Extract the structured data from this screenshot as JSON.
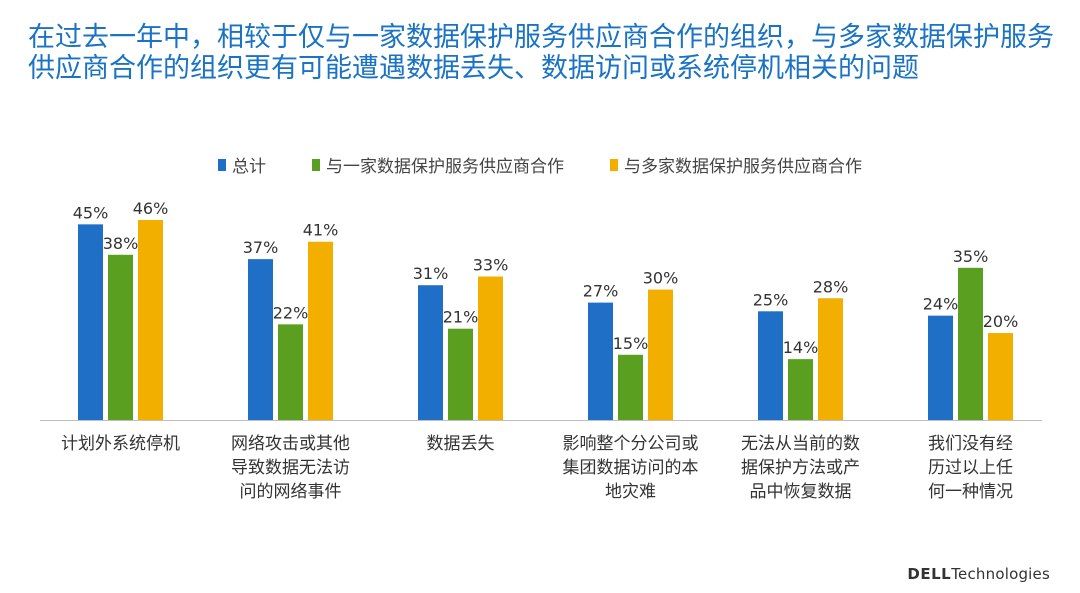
{
  "title": "在过去一年中，相较于仅与一家数据保护服务供应商合作的组织，与多家数据保护服务供应商合作的组织更有可能遭遇数据丢失、数据访问或系统停机相关的问题",
  "brand": {
    "bold": "DELL",
    "rest": "Technologies"
  },
  "colors": {
    "total": "#1f6fc6",
    "single": "#5a9f1f",
    "multi": "#f2af00"
  },
  "chart_data": {
    "type": "bar",
    "title": "",
    "xlabel": "",
    "ylabel": "",
    "ylim": [
      0,
      50
    ],
    "grid": false,
    "legend_position": "top-center",
    "categories": [
      "计划外系统停机",
      "网络攻击或其他\n导致数据无法访\n问的网络事件",
      "数据丢失",
      "影响整个分公司或\n集团数据访问的本\n地灾难",
      "无法从当前的数\n据保护方法或产\n品中恢复数据",
      "我们没有经\n历过以上任\n何一种情况"
    ],
    "series": [
      {
        "name": "总计",
        "color_key": "total",
        "values": [
          45,
          37,
          31,
          27,
          25,
          24
        ]
      },
      {
        "name": "与一家数据保护服务供应商合作",
        "color_key": "single",
        "values": [
          38,
          22,
          21,
          15,
          14,
          35
        ]
      },
      {
        "name": "与多家数据保护服务供应商合作",
        "color_key": "multi",
        "values": [
          46,
          41,
          33,
          30,
          28,
          20
        ]
      }
    ],
    "value_suffix": "%"
  }
}
